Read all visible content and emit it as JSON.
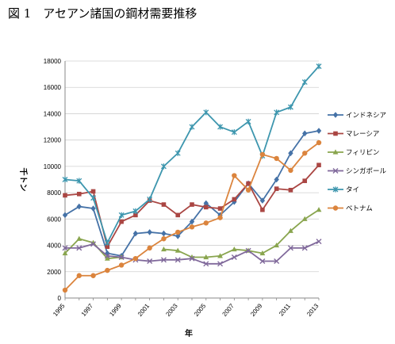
{
  "figure": {
    "title": "図 1　アセアン諸国の鋼材需要推移"
  },
  "chart_data": {
    "type": "line",
    "title": "",
    "xlabel": "年",
    "ylabel": "千トン",
    "x": [
      1995,
      1996,
      1997,
      1998,
      1999,
      2000,
      2001,
      2002,
      2003,
      2004,
      2005,
      2006,
      2007,
      2008,
      2009,
      2010,
      2011,
      2012,
      2013
    ],
    "x_ticks": [
      1995,
      1997,
      1999,
      2001,
      2003,
      2005,
      2007,
      2009,
      2011,
      2013
    ],
    "ylim": [
      0,
      18000
    ],
    "y_ticks": [
      0,
      2000,
      4000,
      6000,
      8000,
      10000,
      12000,
      14000,
      16000,
      18000
    ],
    "grid": "horizontal",
    "legend_position": "right",
    "series": [
      {
        "name": "インドネシア",
        "color": "#4572A7",
        "marker": "diamond",
        "values": [
          6300,
          6950,
          6800,
          3400,
          3200,
          4900,
          5000,
          4900,
          4700,
          5800,
          7200,
          6300,
          7300,
          8700,
          7400,
          9000,
          11000,
          12500,
          12700
        ]
      },
      {
        "name": "マレーシア",
        "color": "#AA4643",
        "marker": "square",
        "values": [
          7800,
          7900,
          8100,
          3900,
          5800,
          6300,
          7400,
          7100,
          6300,
          7100,
          6900,
          6800,
          7500,
          8700,
          6700,
          8300,
          8200,
          8900,
          10100
        ]
      },
      {
        "name": "フィリピン",
        "color": "#89A54E",
        "marker": "triangle",
        "values": [
          3400,
          4500,
          4200,
          3000,
          3100,
          null,
          null,
          3700,
          3600,
          3100,
          3100,
          3200,
          3700,
          3600,
          3400,
          4000,
          5100,
          6000,
          6700
        ]
      },
      {
        "name": "シンガポール",
        "color": "#80699B",
        "marker": "x",
        "values": [
          3800,
          3800,
          4100,
          3200,
          3100,
          2900,
          2800,
          2900,
          2900,
          3000,
          2600,
          2600,
          3100,
          3600,
          2800,
          2800,
          3800,
          3800,
          4300
        ]
      },
      {
        "name": "タイ",
        "color": "#3D96AE",
        "marker": "star",
        "values": [
          9000,
          8900,
          7600,
          4200,
          6300,
          6600,
          7500,
          10000,
          11000,
          13000,
          14100,
          13000,
          12600,
          13400,
          10800,
          14100,
          14500,
          16400,
          17600
        ]
      },
      {
        "name": "ベトナム",
        "color": "#DB843D",
        "marker": "circle",
        "values": [
          600,
          1700,
          1700,
          2100,
          2500,
          3000,
          3800,
          4500,
          5000,
          5400,
          5700,
          6100,
          9300,
          8200,
          10900,
          10600,
          9700,
          11000,
          11800
        ]
      }
    ]
  }
}
